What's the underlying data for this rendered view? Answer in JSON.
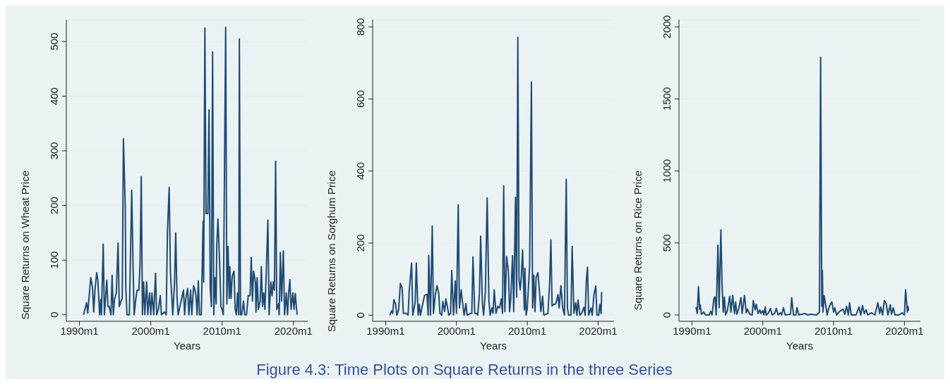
{
  "chart_data": [
    {
      "type": "line",
      "xlabel": "Years",
      "ylabel": "Square Returns on Wheat Price",
      "xlim": [
        "1988-03",
        "2022-01"
      ],
      "xticks": [
        {
          "value": "1990-01",
          "label": "1990m1"
        },
        {
          "value": "2000-01",
          "label": "2000m1"
        },
        {
          "value": "2010-01",
          "label": "2010m1"
        },
        {
          "value": "2020-01",
          "label": "2020m1"
        }
      ],
      "ylim": [
        -12,
        540
      ],
      "yticks": [
        0,
        100,
        200,
        300,
        400,
        500
      ],
      "grid": "y",
      "annotations": [
        "Figure 4.3: Time Plots on Square Returns in the three Series"
      ],
      "series": [
        {
          "color": "#1f4a73",
          "x": [
            "1990-08",
            "1991-01",
            "1991-03",
            "1991-08",
            "1991-11",
            "1992-01",
            "1992-03",
            "1992-06",
            "1992-08",
            "1992-11",
            "1993-01",
            "1993-02",
            "1993-05",
            "1993-07",
            "1993-11",
            "1994-01",
            "1994-03",
            "1994-06",
            "1994-08",
            "1994-10",
            "1994-12",
            "1995-03",
            "1995-06",
            "1995-08",
            "1995-11",
            "1996-01",
            "1996-03",
            "1996-06",
            "1996-07",
            "1996-09",
            "1997-01",
            "1997-05",
            "1997-07",
            "1997-09",
            "1997-12",
            "1998-02",
            "1998-05",
            "1998-07",
            "1998-09",
            "1998-11",
            "1999-01",
            "1999-03",
            "1999-06",
            "1999-08",
            "1999-11",
            "2000-01",
            "2000-03",
            "2000-06",
            "2000-09",
            "2000-11",
            "2001-02",
            "2001-05",
            "2001-07",
            "2001-12",
            "2002-03",
            "2002-05",
            "2002-08",
            "2002-10",
            "2002-12",
            "2003-02",
            "2003-05",
            "2003-07",
            "2003-09",
            "2003-11",
            "2004-01",
            "2004-05",
            "2004-08",
            "2004-10",
            "2004-12",
            "2005-03",
            "2005-05",
            "2005-08",
            "2005-10",
            "2006-01",
            "2006-03",
            "2006-05",
            "2006-07",
            "2006-09",
            "2006-11",
            "2007-02",
            "2007-05",
            "2007-06",
            "2007-08",
            "2007-10",
            "2008-01",
            "2008-03",
            "2008-05",
            "2008-07",
            "2008-09",
            "2008-11",
            "2009-01",
            "2009-03",
            "2009-04",
            "2009-06",
            "2009-09",
            "2009-11",
            "2010-01",
            "2010-03",
            "2010-07",
            "2010-09",
            "2010-11",
            "2011-01",
            "2011-02",
            "2011-04",
            "2011-06",
            "2011-09",
            "2011-11",
            "2012-01",
            "2012-03",
            "2012-05",
            "2012-06",
            "2012-08",
            "2012-10",
            "2013-01",
            "2013-03",
            "2013-06",
            "2013-09",
            "2013-12",
            "2014-02",
            "2014-04",
            "2014-06",
            "2014-09",
            "2014-10",
            "2014-12",
            "2015-02",
            "2015-05",
            "2015-07",
            "2015-09",
            "2015-11",
            "2016-01",
            "2016-03",
            "2016-06",
            "2016-08",
            "2016-11",
            "2017-01",
            "2017-03",
            "2017-05",
            "2017-07",
            "2017-09",
            "2017-12",
            "2018-01",
            "2018-03",
            "2018-05",
            "2018-08",
            "2018-10",
            "2019-01",
            "2019-03",
            "2019-05",
            "2019-07",
            "2019-09",
            "2019-12",
            "2020-02",
            "2020-04",
            "2020-07"
          ],
          "values": [
            0,
            22,
            3,
            68,
            50,
            5,
            43,
            77,
            63,
            0,
            28,
            0,
            129,
            0,
            63,
            15,
            15,
            0,
            72,
            0,
            28,
            40,
            131,
            15,
            25,
            30,
            322,
            203,
            50,
            0,
            0,
            228,
            100,
            0,
            30,
            45,
            45,
            95,
            253,
            0,
            60,
            0,
            60,
            0,
            40,
            0,
            40,
            0,
            76,
            0,
            10,
            35,
            0,
            5,
            0,
            150,
            233,
            78,
            40,
            0,
            60,
            150,
            35,
            0,
            10,
            30,
            45,
            0,
            30,
            48,
            0,
            45,
            0,
            53,
            47,
            35,
            0,
            62,
            0,
            0,
            171,
            60,
            525,
            185,
            185,
            375,
            50,
            15,
            481,
            0,
            68,
            20,
            128,
            175,
            90,
            15,
            10,
            0,
            526,
            20,
            125,
            30,
            88,
            30,
            70,
            80,
            10,
            0,
            40,
            0,
            505,
            0,
            0,
            25,
            0,
            0,
            35,
            35,
            105,
            25,
            80,
            60,
            5,
            68,
            10,
            25,
            88,
            15,
            40,
            10,
            70,
            173,
            0,
            60,
            35,
            60,
            45,
            281,
            10,
            20,
            0,
            114,
            25,
            117,
            0,
            40,
            0,
            40,
            64,
            10,
            40,
            10,
            39,
            0
          ]
        }
      ]
    },
    {
      "type": "line",
      "xlabel": "Years",
      "ylabel": "Square Returns on Sorghum Price",
      "xlim": [
        "1988-03",
        "2022-04"
      ],
      "xticks": [
        {
          "value": "1990-01",
          "label": "1990m1"
        },
        {
          "value": "2000-01",
          "label": "2000m1"
        },
        {
          "value": "2010-01",
          "label": "2010m1"
        },
        {
          "value": "2020-01",
          "label": "2020m1"
        }
      ],
      "ylim": [
        -17,
        820
      ],
      "yticks": [
        0,
        200,
        400,
        600,
        800
      ],
      "grid": "y",
      "series": [
        {
          "color": "#1f4a73",
          "x": [
            "1990-08",
            "1990-11",
            "1991-01",
            "1991-03",
            "1991-06",
            "1991-08",
            "1991-11",
            "1992-02",
            "1992-05",
            "1992-07",
            "1992-12",
            "1993-03",
            "1993-05",
            "1993-09",
            "1993-11",
            "1994-03",
            "1994-05",
            "1994-08",
            "1994-10",
            "1994-12",
            "1995-03",
            "1995-07",
            "1995-11",
            "1996-01",
            "1996-02",
            "1996-05",
            "1996-08",
            "1996-10",
            "1997-01",
            "1997-04",
            "1997-07",
            "1997-09",
            "1997-12",
            "1998-02",
            "1998-05",
            "1998-07",
            "1998-10",
            "1998-12",
            "1999-03",
            "1999-05",
            "1999-08",
            "1999-11",
            "2000-01",
            "2000-04",
            "2000-06",
            "2000-09",
            "2000-12",
            "2001-02",
            "2001-05",
            "2001-07",
            "2002-01",
            "2002-03",
            "2002-05",
            "2002-08",
            "2002-11",
            "2003-01",
            "2003-04",
            "2003-06",
            "2003-09",
            "2003-11",
            "2004-02",
            "2004-05",
            "2004-08",
            "2004-10",
            "2005-01",
            "2005-03",
            "2005-05",
            "2005-08",
            "2005-11",
            "2006-02",
            "2006-05",
            "2006-07",
            "2006-09",
            "2006-11",
            "2007-02",
            "2007-05",
            "2007-07",
            "2007-09",
            "2007-12",
            "2008-02",
            "2008-05",
            "2008-07",
            "2008-09",
            "2008-11",
            "2009-01",
            "2009-03",
            "2009-05",
            "2009-08",
            "2009-09",
            "2009-11",
            "2010-01",
            "2010-05",
            "2010-08",
            "2010-10",
            "2010-12",
            "2011-02",
            "2011-04",
            "2011-07",
            "2011-09",
            "2011-12",
            "2012-03",
            "2012-05",
            "2012-12",
            "2013-03",
            "2013-05",
            "2013-07",
            "2013-09",
            "2013-12",
            "2014-02",
            "2014-05",
            "2014-07",
            "2014-10",
            "2015-01",
            "2015-04",
            "2015-07",
            "2015-09",
            "2015-11",
            "2016-03",
            "2016-05",
            "2016-08",
            "2016-11",
            "2017-01",
            "2017-03",
            "2017-06",
            "2017-09",
            "2018-01",
            "2018-03",
            "2018-05",
            "2018-07",
            "2018-09",
            "2019-01",
            "2019-03",
            "2019-06",
            "2019-09",
            "2019-11",
            "2020-02",
            "2020-04",
            "2020-06",
            "2020-07"
          ],
          "values": [
            0,
            12,
            5,
            43,
            30,
            0,
            15,
            88,
            75,
            5,
            5,
            0,
            68,
            145,
            0,
            35,
            145,
            0,
            30,
            0,
            25,
            55,
            58,
            0,
            166,
            0,
            247,
            5,
            55,
            82,
            60,
            5,
            0,
            38,
            10,
            45,
            20,
            0,
            5,
            124,
            0,
            95,
            5,
            306,
            20,
            70,
            25,
            0,
            32,
            0,
            5,
            5,
            162,
            5,
            5,
            0,
            60,
            219,
            30,
            0,
            65,
            325,
            40,
            0,
            20,
            5,
            70,
            5,
            25,
            20,
            45,
            5,
            359,
            10,
            163,
            122,
            10,
            45,
            165,
            10,
            327,
            50,
            771,
            100,
            70,
            110,
            181,
            15,
            130,
            0,
            20,
            138,
            647,
            20,
            111,
            10,
            105,
            118,
            80,
            10,
            53,
            0,
            5,
            95,
            209,
            25,
            30,
            30,
            35,
            57,
            20,
            82,
            20,
            0,
            377,
            20,
            0,
            0,
            191,
            5,
            35,
            0,
            42,
            0,
            5,
            22,
            0,
            95,
            133,
            0,
            20,
            0,
            57,
            81,
            0,
            0,
            30,
            5,
            64
          ]
        }
      ]
    },
    {
      "type": "line",
      "xlabel": "Years",
      "ylabel": "Square Returns on Rice Price",
      "xlim": [
        "1988-03",
        "2022-04"
      ],
      "xticks": [
        {
          "value": "1990-01",
          "label": "1990m1"
        },
        {
          "value": "2000-01",
          "label": "2000m1"
        },
        {
          "value": "2010-01",
          "label": "2010m1"
        },
        {
          "value": "2020-01",
          "label": "2020m1"
        }
      ],
      "ylim": [
        -44,
        2050
      ],
      "yticks": [
        0,
        500,
        1000,
        1500,
        2000
      ],
      "grid": "y",
      "series": [
        {
          "color": "#1f4a73",
          "x": [
            "1990-08",
            "1990-10",
            "1990-12",
            "1991-02",
            "1991-03",
            "1991-05",
            "1991-09",
            "1991-12",
            "1992-06",
            "1992-09",
            "1992-11",
            "1993-02",
            "1993-04",
            "1993-06",
            "1993-09",
            "1993-11",
            "1994-02",
            "1994-04",
            "1994-06",
            "1994-08",
            "1994-10",
            "1995-01",
            "1995-05",
            "1995-07",
            "1995-10",
            "1996-01",
            "1996-03",
            "1996-05",
            "1996-08",
            "1996-12",
            "1997-02",
            "1997-06",
            "1997-09",
            "1997-11",
            "1998-03",
            "1998-07",
            "1998-09",
            "1998-12",
            "1999-02",
            "1999-05",
            "1999-08",
            "1999-10",
            "2000-01",
            "2000-03",
            "2000-05",
            "2000-07",
            "2000-10",
            "2001-02",
            "2001-05",
            "2001-09",
            "2001-12",
            "2002-03",
            "2002-07",
            "2002-09",
            "2002-12",
            "2003-03",
            "2003-12",
            "2004-02",
            "2004-05",
            "2004-09",
            "2004-11",
            "2005-02",
            "2005-12",
            "2006-05",
            "2006-11",
            "2007-08",
            "2008-01",
            "2008-03",
            "2008-05",
            "2008-06",
            "2008-07",
            "2008-09",
            "2008-12",
            "2009-02",
            "2009-05",
            "2009-07",
            "2009-10",
            "2010-01",
            "2010-03",
            "2010-06",
            "2010-10",
            "2011-01",
            "2011-05",
            "2011-08",
            "2011-11",
            "2012-02",
            "2012-04",
            "2012-07",
            "2013-03",
            "2013-08",
            "2013-11",
            "2014-02",
            "2014-05",
            "2014-08",
            "2014-11",
            "2015-05",
            "2015-11",
            "2016-04",
            "2016-07",
            "2016-09",
            "2016-12",
            "2017-03",
            "2017-06",
            "2017-09",
            "2018-01",
            "2018-03",
            "2018-06",
            "2018-09",
            "2019-04",
            "2019-09",
            "2020-01",
            "2020-03",
            "2020-06",
            "2020-07",
            "2020-08"
          ],
          "values": [
            55,
            10,
            197,
            40,
            70,
            5,
            20,
            0,
            0,
            25,
            0,
            110,
            125,
            0,
            485,
            50,
            590,
            210,
            20,
            125,
            0,
            30,
            130,
            20,
            135,
            10,
            90,
            5,
            40,
            120,
            10,
            135,
            15,
            40,
            5,
            0,
            100,
            35,
            75,
            10,
            35,
            10,
            30,
            0,
            55,
            0,
            10,
            45,
            0,
            10,
            45,
            0,
            15,
            0,
            50,
            0,
            5,
            120,
            0,
            0,
            50,
            0,
            10,
            0,
            5,
            0,
            20,
            1790,
            60,
            310,
            20,
            133,
            60,
            0,
            50,
            70,
            90,
            20,
            50,
            0,
            20,
            30,
            40,
            5,
            60,
            0,
            85,
            0,
            0,
            55,
            0,
            65,
            10,
            35,
            0,
            15,
            0,
            85,
            10,
            55,
            0,
            100,
            80,
            0,
            70,
            5,
            50,
            0,
            0,
            15,
            0,
            175,
            20,
            60,
            30
          ]
        }
      ]
    }
  ]
}
